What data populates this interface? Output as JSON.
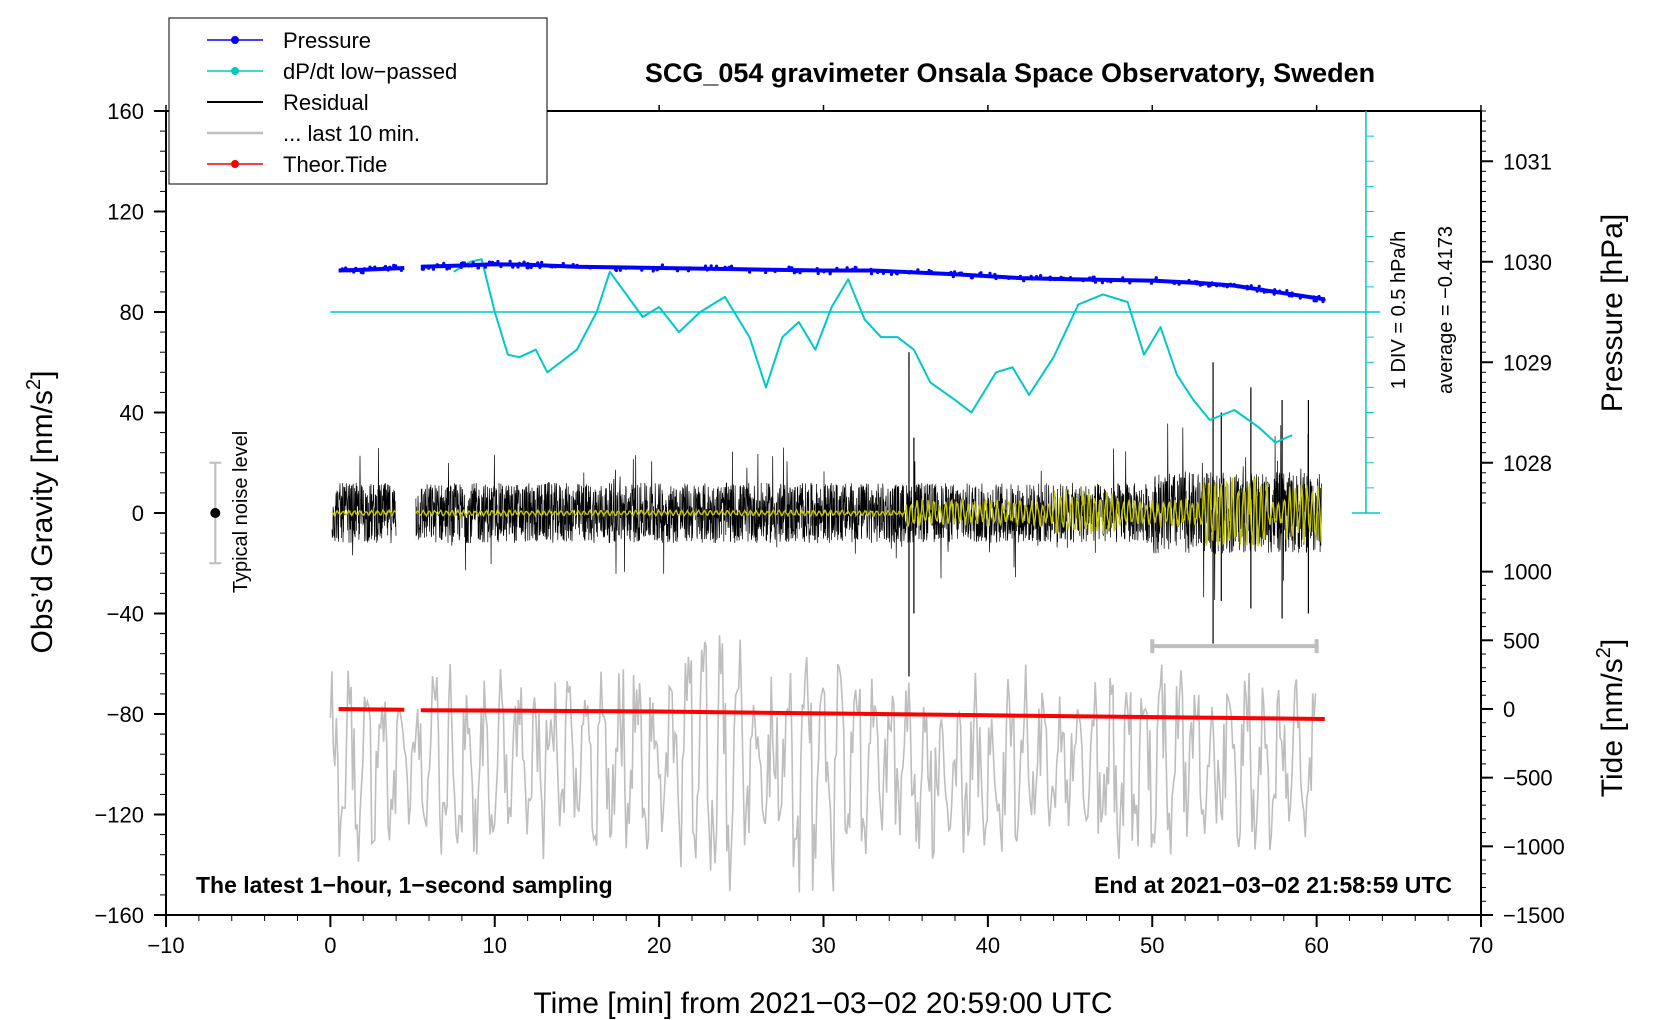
{
  "chart_data": {
    "type": "line",
    "title": "SCG_054 gravimeter Onsala Space Observatory, Sweden",
    "xlabel": "Time [min] from 2021−03−02 20:59:00 UTC",
    "ylabel_left": "Obs’d Gravity [nm/s²]",
    "ylabel_left_text": "Obs’d Gravity [nm/s",
    "ylabel_left_sup": "2",
    "ylabel_left_end": "]",
    "ylabel_pressure": "Pressure [hPa]",
    "ylabel_tide_text": "Tide [nm/s",
    "ylabel_tide_sup": "2",
    "ylabel_tide_end": "]",
    "xlim": [
      -10,
      70
    ],
    "ylim": [
      -160,
      160
    ],
    "x_ticks": [
      "−10",
      "0",
      "10",
      "20",
      "30",
      "40",
      "50",
      "60",
      "70"
    ],
    "x_tick_values": [
      -10,
      0,
      10,
      20,
      30,
      40,
      50,
      60,
      70
    ],
    "y_ticks": [
      "−160",
      "−120",
      "−80",
      "−40",
      "0",
      "40",
      "80",
      "120",
      "160"
    ],
    "y_tick_values": [
      -160,
      -120,
      -80,
      -40,
      0,
      40,
      80,
      120,
      160
    ],
    "pressure_ticks": [
      "1028",
      "1029",
      "1030",
      "1031"
    ],
    "pressure_tick_values": [
      1028,
      1029,
      1030,
      1031
    ],
    "pressure_scale": {
      "p_ref": 1029.5,
      "y_ref": 80,
      "nm_per_hpa": 40
    },
    "tide_ticks": [
      "−1500",
      "−1000",
      "−500",
      "0",
      "500",
      "1000"
    ],
    "tide_tick_values": [
      -1500,
      -1000,
      -500,
      0,
      500,
      1000
    ],
    "tide_scale": {
      "t_ref": 0,
      "y_ref": -78,
      "nm_per_unit": 0.0546667
    },
    "legend": [
      {
        "label": "Pressure",
        "color": "#0000ff",
        "marker": true
      },
      {
        "label": "dP/dt low−passed",
        "color": "#00c8c8",
        "marker": true
      },
      {
        "label": "Residual",
        "color": "#000000",
        "marker": false
      },
      {
        "label": "... last 10 min.",
        "color": "#bebebe",
        "marker": false
      },
      {
        "label": "Theor.Tide",
        "color": "#ff0000",
        "marker": true
      }
    ],
    "annotations": {
      "bottom_left": "The latest 1−hour, 1−second sampling",
      "bottom_right": "End at 2021−03−02 21:58:59 UTC",
      "div_label": "1 DIV = 0.5 hPa/h",
      "average_label": "average = −0.4173",
      "noise_label": "Typical noise level"
    },
    "noise_bar": {
      "x": -7,
      "ymin": -20,
      "ymax": 20
    },
    "last10_bracket": {
      "x_start": 50,
      "x_end": 60,
      "y": -53
    },
    "dpdt_axis": {
      "x": 63,
      "y_zero_line": 80,
      "div_step": 10,
      "y_bottom": 0,
      "y_top": 160
    },
    "series": [
      {
        "name": "Pressure",
        "color": "#0000ff",
        "x": [
          0.5,
          2,
          4.5
        ],
        "y": [
          96.5,
          96.8,
          97.5
        ],
        "x2": [
          5.5,
          8,
          10,
          12,
          15,
          20,
          25,
          30,
          33,
          38,
          42,
          45,
          50,
          53,
          55,
          58,
          60.5
        ],
        "y2": [
          98,
          98.5,
          99,
          98.8,
          98,
          97.5,
          97,
          96.5,
          96.5,
          95,
          93.5,
          93,
          92.5,
          91.5,
          90.5,
          87.5,
          85
        ]
      },
      {
        "name": "dP/dt low-passed",
        "color": "#00c8c8",
        "x": [
          7.5,
          8.5,
          9.2,
          10,
          10.8,
          11.5,
          12.5,
          13.2,
          14,
          15,
          16.2,
          17,
          18,
          19,
          20,
          21.2,
          22.5,
          24,
          25.5,
          26.5,
          27.5,
          28.5,
          29.5,
          30.5,
          31.5,
          32.5,
          33.5,
          34.5,
          35.5,
          36.5,
          38,
          39,
          40.5,
          41.5,
          42.5,
          44,
          45.5,
          47,
          48.5,
          49.5,
          50.5,
          51.5,
          52.5,
          53.5,
          55,
          56.5,
          57.5,
          58.5
        ],
        "y": [
          96,
          100,
          101,
          80,
          63,
          62,
          65,
          56,
          60,
          65,
          80,
          96,
          87,
          78,
          82,
          72,
          80,
          86,
          70,
          50,
          70,
          76,
          65,
          82,
          93,
          77,
          70,
          70,
          65,
          52,
          45,
          40,
          56,
          58,
          47,
          62,
          83,
          87,
          84,
          63,
          74,
          55,
          45,
          37,
          41,
          34,
          28,
          31
        ]
      },
      {
        "name": "Theor.Tide",
        "color": "#ff0000",
        "x": [
          0.5,
          4.5,
          5.5,
          20,
          40,
          60.5
        ],
        "y": [
          -78,
          -78.3,
          -78.5,
          -79,
          -80.5,
          -82
        ]
      }
    ],
    "residual": {
      "color": "#000000",
      "segments": [
        [
          0.1,
          4
        ],
        [
          5.2,
          60.3
        ]
      ],
      "base_amplitude": 12,
      "spikes": [
        {
          "x": 35.2,
          "y_max": 64,
          "y_min": -65
        },
        {
          "x": 35.5,
          "y_max": 30,
          "y_min": -40
        },
        {
          "x": 53.7,
          "y_max": 60,
          "y_min": -52
        },
        {
          "x": 54.2,
          "y_max": 40,
          "y_min": -35
        },
        {
          "x": 56.0,
          "y_max": 50,
          "y_min": -38
        },
        {
          "x": 57.9,
          "y_max": 45,
          "y_min": -42
        },
        {
          "x": 59.5,
          "y_max": 45,
          "y_min": -40
        }
      ]
    },
    "residual_lowpass": {
      "color": "#c8c800",
      "active_from": 35,
      "active_to": 60.3
    },
    "last10_series": {
      "color": "#bebebe",
      "x_start": 0,
      "x_end": 60,
      "center": -100,
      "amplitude": 30
    }
  }
}
